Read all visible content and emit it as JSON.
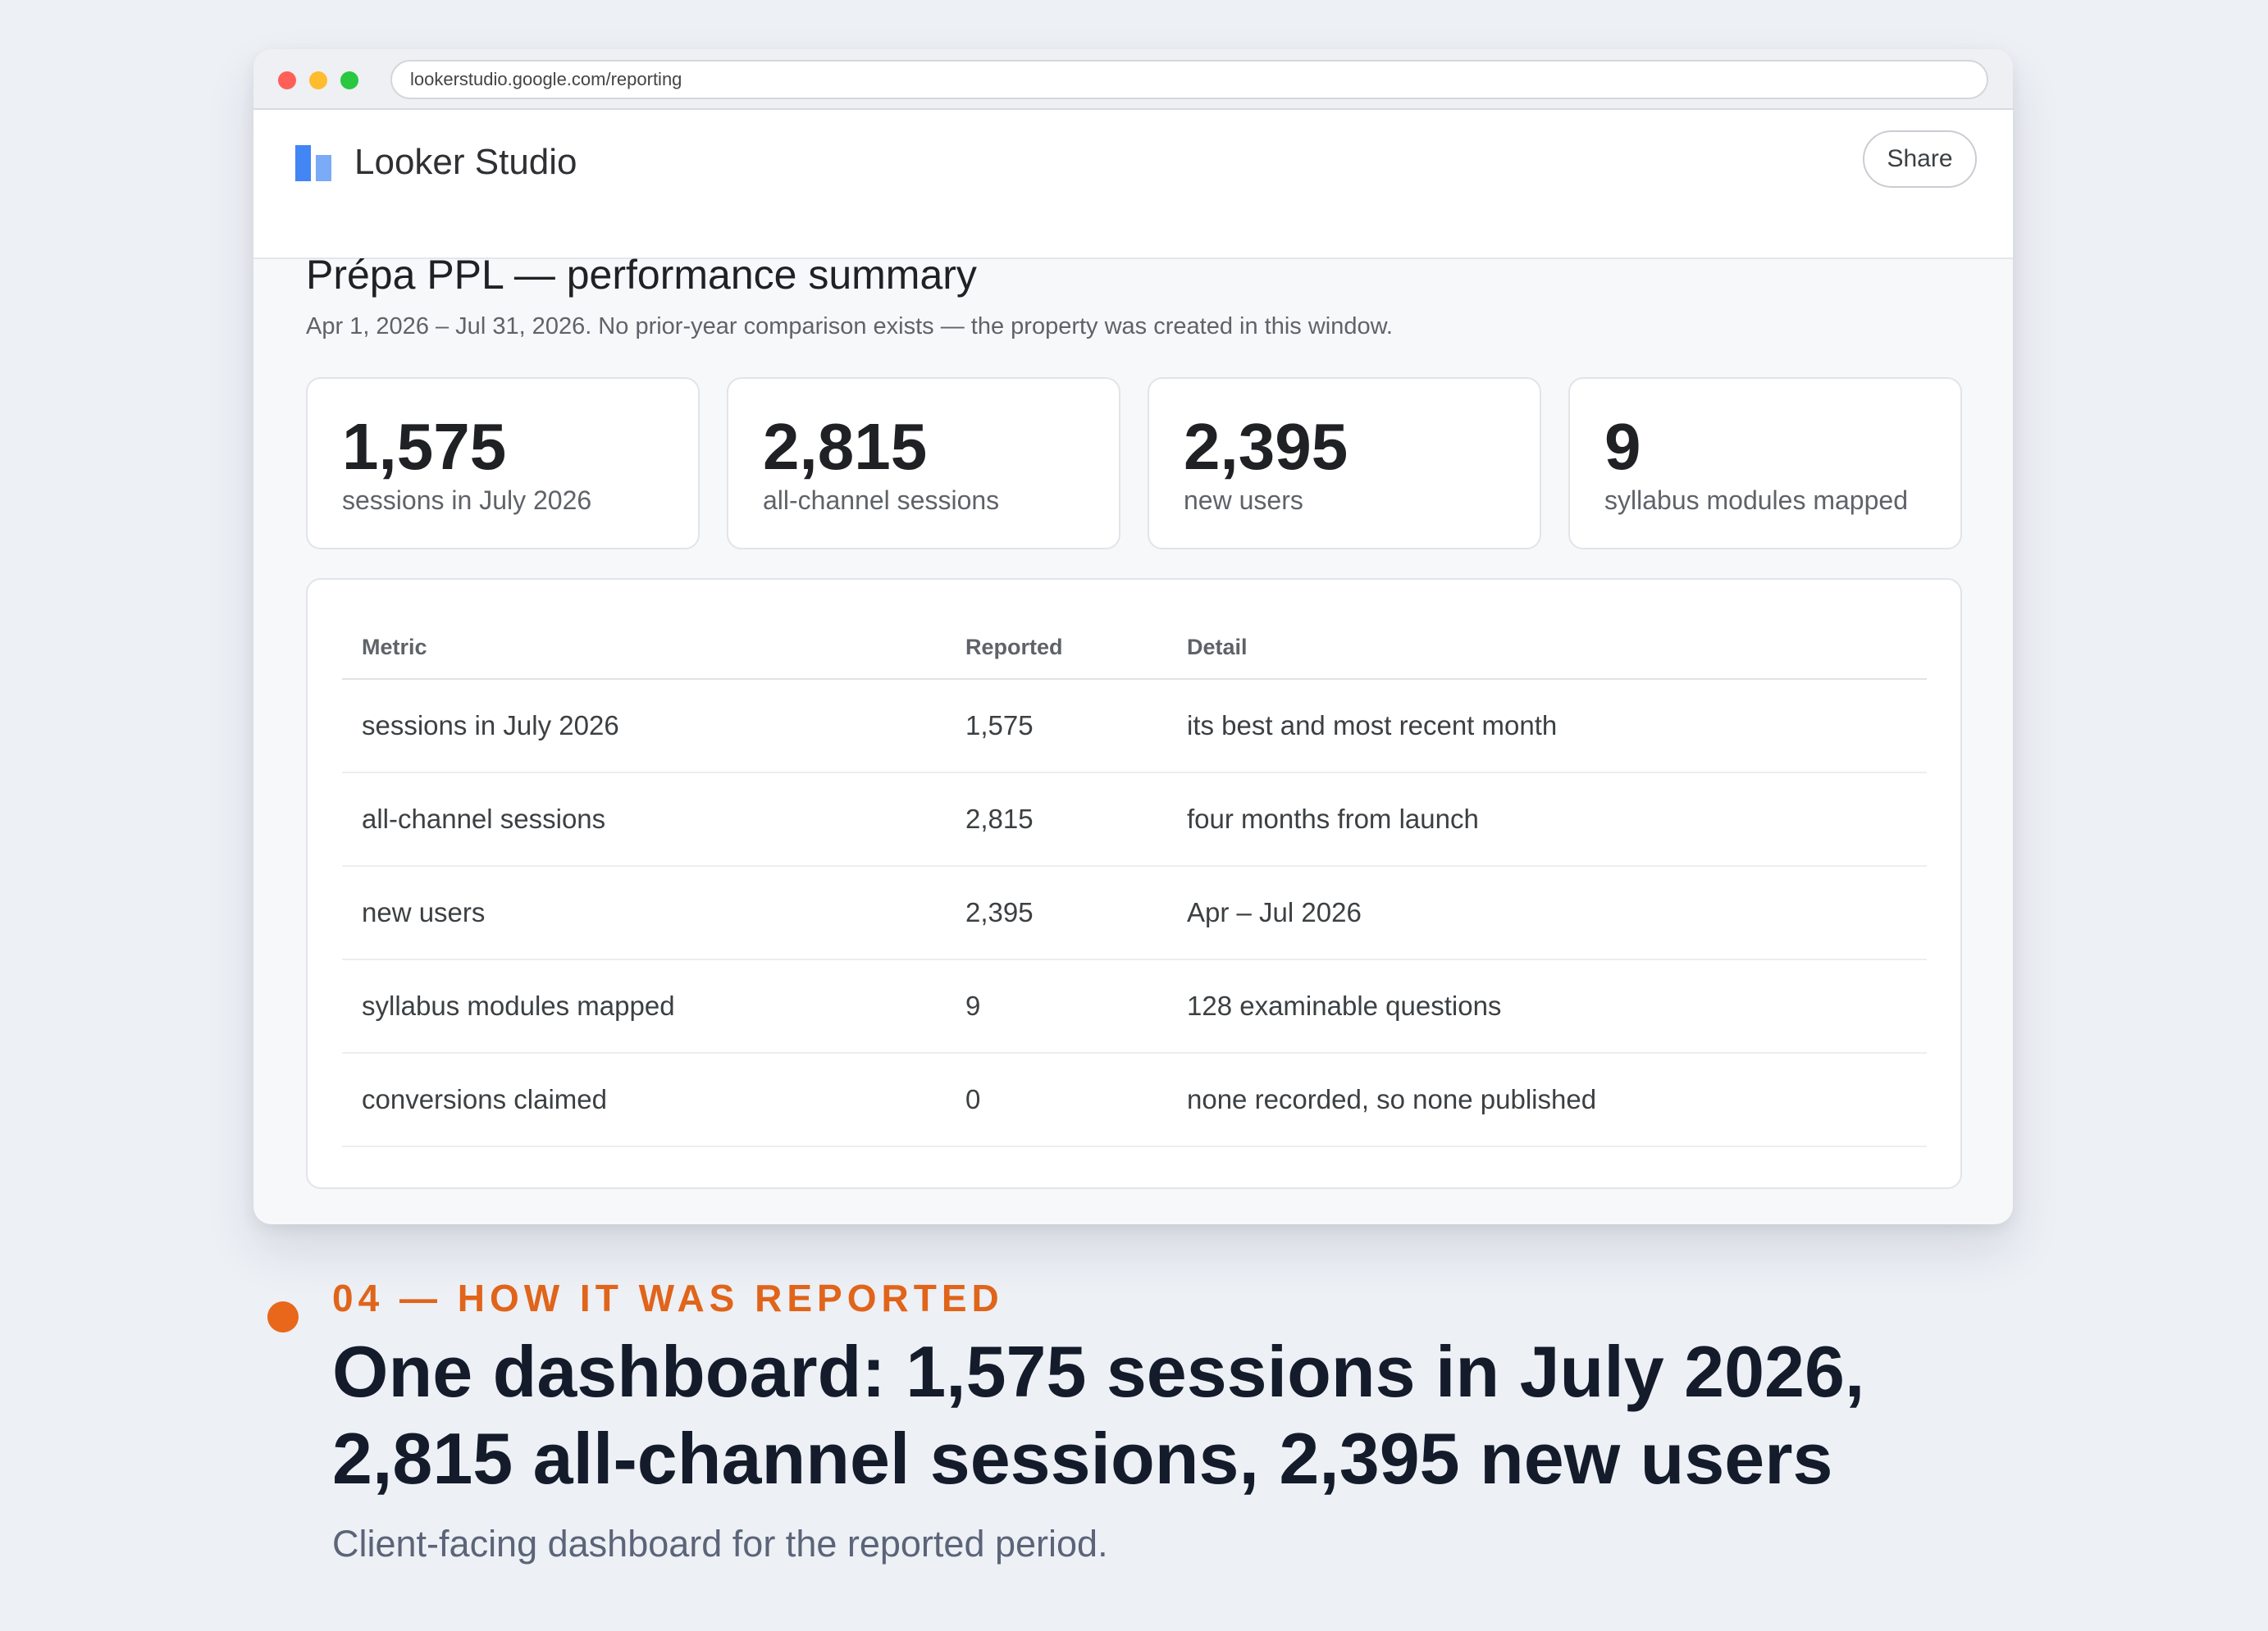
{
  "browser": {
    "url": "lookerstudio.google.com/reporting"
  },
  "app": {
    "name": "Looker Studio",
    "share_label": "Share"
  },
  "report": {
    "title": "Prépa PPL — performance summary",
    "subtitle": "Apr 1, 2026 – Jul 31, 2026. No prior-year comparison exists — the property was created in this window."
  },
  "kpis": [
    {
      "value": "1,575",
      "label": "sessions in July 2026"
    },
    {
      "value": "2,815",
      "label": "all-channel sessions"
    },
    {
      "value": "2,395",
      "label": "new users"
    },
    {
      "value": "9",
      "label": "syllabus modules mapped"
    }
  ],
  "table": {
    "headers": [
      "Metric",
      "Reported",
      "Detail"
    ],
    "rows": [
      [
        "sessions in July 2026",
        "1,575",
        "its best and most recent month"
      ],
      [
        "all-channel sessions",
        "2,815",
        "four months from launch"
      ],
      [
        "new users",
        "2,395",
        "Apr – Jul 2026"
      ],
      [
        "syllabus modules mapped",
        "9",
        "128 examinable questions"
      ],
      [
        "conversions claimed",
        "0",
        "none recorded, so none published"
      ]
    ]
  },
  "slide": {
    "kicker": "04 — HOW IT WAS REPORTED",
    "headline": "One dashboard: 1,575 sessions in July 2026, 2,815 all-channel sessions, 2,395 new users",
    "caption": "Client-facing dashboard for the reported period.",
    "accent_color": "#e8671a"
  }
}
